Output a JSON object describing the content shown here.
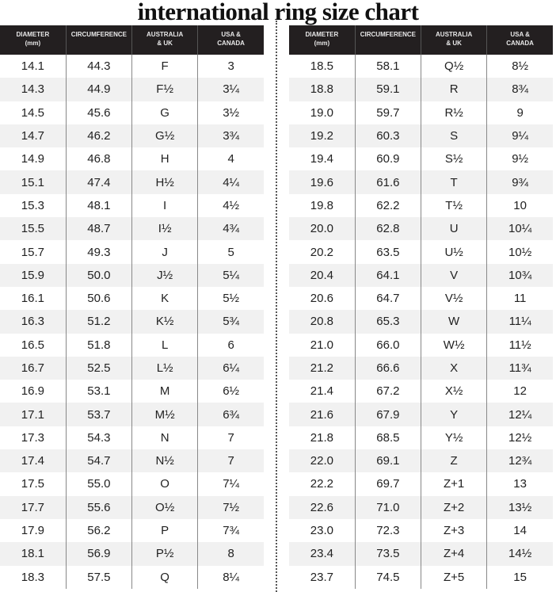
{
  "title": "international ring size chart",
  "headers": [
    {
      "line1": "DIAMETER",
      "line2": "(mm)"
    },
    {
      "line1": "CIRCUMFERENCE",
      "line2": ""
    },
    {
      "line1": "AUSTRALIA",
      "line2": "& UK"
    },
    {
      "line1": "USA &",
      "line2": "CANADA"
    }
  ],
  "left_rows": [
    [
      "14.1",
      "44.3",
      "F",
      "3"
    ],
    [
      "14.3",
      "44.9",
      "F½",
      "3¼"
    ],
    [
      "14.5",
      "45.6",
      "G",
      "3½"
    ],
    [
      "14.7",
      "46.2",
      "G½",
      "3¾"
    ],
    [
      "14.9",
      "46.8",
      "H",
      "4"
    ],
    [
      "15.1",
      "47.4",
      "H½",
      "4¼"
    ],
    [
      "15.3",
      "48.1",
      "I",
      "4½"
    ],
    [
      "15.5",
      "48.7",
      "I½",
      "4¾"
    ],
    [
      "15.7",
      "49.3",
      "J",
      "5"
    ],
    [
      "15.9",
      "50.0",
      "J½",
      "5¼"
    ],
    [
      "16.1",
      "50.6",
      "K",
      "5½"
    ],
    [
      "16.3",
      "51.2",
      "K½",
      "5¾"
    ],
    [
      "16.5",
      "51.8",
      "L",
      "6"
    ],
    [
      "16.7",
      "52.5",
      "L½",
      "6¼"
    ],
    [
      "16.9",
      "53.1",
      "M",
      "6½"
    ],
    [
      "17.1",
      "53.7",
      "M½",
      "6¾"
    ],
    [
      "17.3",
      "54.3",
      "N",
      "7"
    ],
    [
      "17.4",
      "54.7",
      "N½",
      "7"
    ],
    [
      "17.5",
      "55.0",
      "O",
      "7¼"
    ],
    [
      "17.7",
      "55.6",
      "O½",
      "7½"
    ],
    [
      "17.9",
      "56.2",
      "P",
      "7¾"
    ],
    [
      "18.1",
      "56.9",
      "P½",
      "8"
    ],
    [
      "18.3",
      "57.5",
      "Q",
      "8¼"
    ]
  ],
  "right_rows": [
    [
      "18.5",
      "58.1",
      "Q½",
      "8½"
    ],
    [
      "18.8",
      "59.1",
      "R",
      "8¾"
    ],
    [
      "19.0",
      "59.7",
      "R½",
      "9"
    ],
    [
      "19.2",
      "60.3",
      "S",
      "9¼"
    ],
    [
      "19.4",
      "60.9",
      "S½",
      "9½"
    ],
    [
      "19.6",
      "61.6",
      "T",
      "9¾"
    ],
    [
      "19.8",
      "62.2",
      "T½",
      "10"
    ],
    [
      "20.0",
      "62.8",
      "U",
      "10¼"
    ],
    [
      "20.2",
      "63.5",
      "U½",
      "10½"
    ],
    [
      "20.4",
      "64.1",
      "V",
      "10¾"
    ],
    [
      "20.6",
      "64.7",
      "V½",
      "11"
    ],
    [
      "20.8",
      "65.3",
      "W",
      "11¼"
    ],
    [
      "21.0",
      "66.0",
      "W½",
      "11½"
    ],
    [
      "21.2",
      "66.6",
      "X",
      "11¾"
    ],
    [
      "21.4",
      "67.2",
      "X½",
      "12"
    ],
    [
      "21.6",
      "67.9",
      "Y",
      "12¼"
    ],
    [
      "21.8",
      "68.5",
      "Y½",
      "12½"
    ],
    [
      "22.0",
      "69.1",
      "Z",
      "12¾"
    ],
    [
      "22.2",
      "69.7",
      "Z+1",
      "13"
    ],
    [
      "22.6",
      "71.0",
      "Z+2",
      "13½"
    ],
    [
      "23.0",
      "72.3",
      "Z+3",
      "14"
    ],
    [
      "23.4",
      "73.5",
      "Z+4",
      "14½"
    ],
    [
      "23.7",
      "74.5",
      "Z+5",
      "15"
    ]
  ]
}
